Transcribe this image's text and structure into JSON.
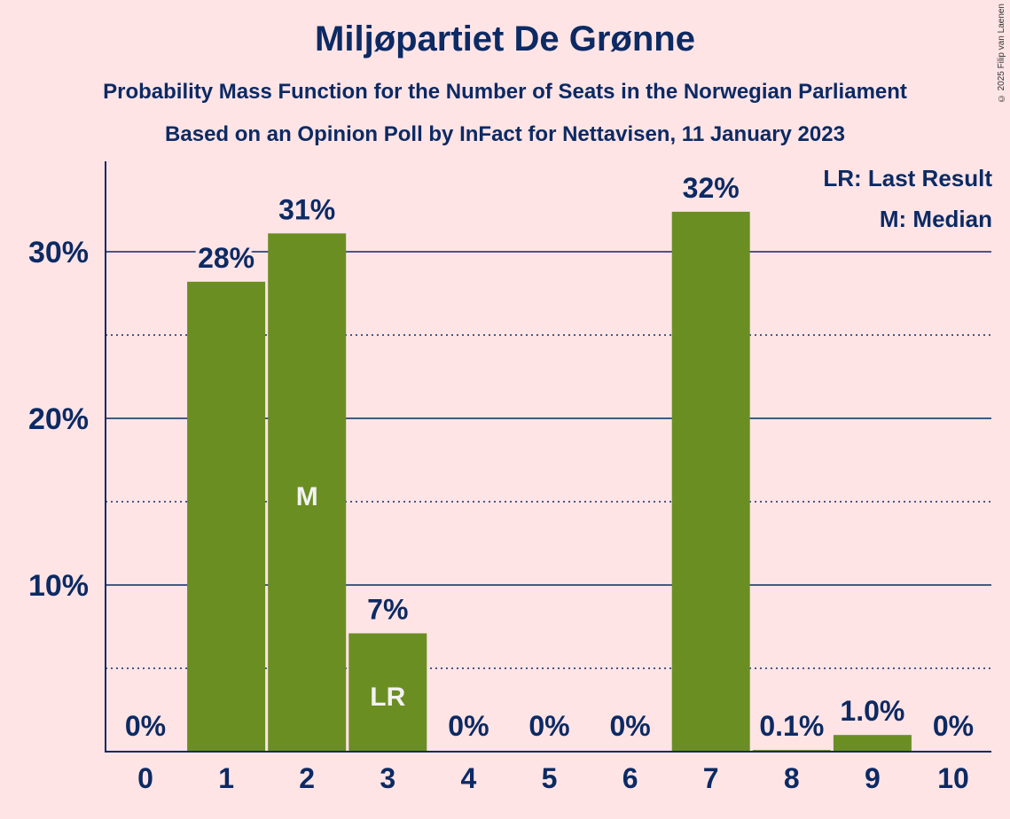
{
  "title": "Miljøpartiet De Grønne",
  "subtitle": "Probability Mass Function for the Number of Seats in the Norwegian Parliament",
  "subtitle2": "Based on an Opinion Poll by InFact for Nettavisen, 11 January 2023",
  "copyright": "© 2025 Filip van Laenen",
  "legend": {
    "last_result": "LR: Last Result",
    "median": "M: Median"
  },
  "colors": {
    "bar": "#6b8e23",
    "text": "#0c2a63",
    "background": "#ffe4e6"
  },
  "chart_data": {
    "type": "bar",
    "categories": [
      "0",
      "1",
      "2",
      "3",
      "4",
      "5",
      "6",
      "7",
      "8",
      "9",
      "10"
    ],
    "values": [
      0,
      28.2,
      31.1,
      7.1,
      0,
      0,
      0,
      32.4,
      0.1,
      1.0,
      0
    ],
    "value_labels": [
      "0%",
      "28%",
      "31%",
      "7%",
      "0%",
      "0%",
      "0%",
      "32%",
      "0.1%",
      "1.0%",
      "0%"
    ],
    "ylim": [
      0,
      35
    ],
    "yticks": [
      10,
      20,
      30
    ],
    "ytick_labels": [
      "10%",
      "20%",
      "30%"
    ],
    "minor_gridlines": [
      5,
      15,
      25
    ],
    "median_index": 2,
    "median_label": "M",
    "last_result_index": 3,
    "last_result_label": "LR",
    "legend_position": "top-right"
  }
}
